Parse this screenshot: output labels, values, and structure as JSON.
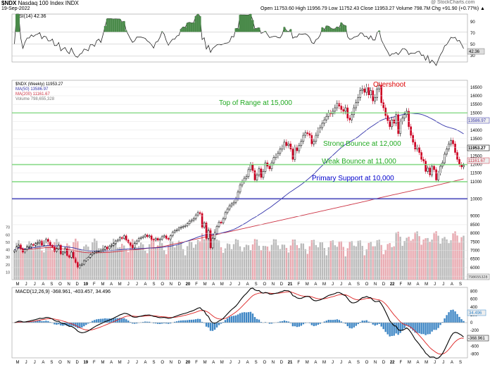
{
  "header": {
    "symbol": "$NDX",
    "name": "Nasdaq 100 Index",
    "exchange": "INDX",
    "date": "19-Sep-2022",
    "watermark": "@ StockCharts.com",
    "ohlc": "Open 11753.60  High 11956.79  Low 11752.43  Close 11953.27  Volume 798.7M  Chg +91.90 (+0.77%) ▲"
  },
  "legend": {
    "price": "$NDX (Weekly) 11953.27",
    "ma50": "MA(50) 13586.97",
    "ma200": "MA(200) 11161.67",
    "volume": "Volume 798,655,328"
  },
  "rsi": {
    "label": "RSI(14) 42.36",
    "ticks": [
      "90",
      "70",
      "50",
      "30"
    ],
    "value_label": "42.36"
  },
  "macd": {
    "label": "MACD(12,26,9) -368.961, -403.457, 34.496",
    "ticks": [
      "800",
      "600",
      "400",
      "200",
      "0",
      "-200",
      "-400",
      "-600",
      "-800"
    ],
    "value_labels": [
      "34.496",
      "-368.961"
    ]
  },
  "annotations": {
    "overshoot": "Overshoot",
    "top": "Top of Range at 15,000",
    "strong": "Strong Bounce at 12,000",
    "weak": "Weak Bounce at 11,000",
    "primary": "Primary Support at 10,000"
  },
  "price_axis": {
    "ticks": [
      "16500",
      "16000",
      "15500",
      "15000",
      "14500",
      "14000",
      "13500",
      "13000",
      "12500",
      "12000",
      "11500",
      "11000",
      "10000",
      "9000",
      "8500",
      "8000",
      "7500",
      "7000",
      "6500",
      "6000",
      "5500"
    ],
    "last_labels": [
      "13586.97",
      "11953.27",
      "11161.67"
    ],
    "volume_ticks": [
      "70",
      "60",
      "50",
      "40",
      "30",
      "20",
      "10"
    ],
    "volume_last": "798655328"
  },
  "x_axis": {
    "labels": [
      "M",
      "J",
      "J",
      "A",
      "S",
      "O",
      "N",
      "D",
      "19",
      "F",
      "M",
      "A",
      "M",
      "J",
      "J",
      "A",
      "S",
      "O",
      "N",
      "D",
      "20",
      "F",
      "M",
      "A",
      "M",
      "J",
      "J",
      "A",
      "S",
      "O",
      "N",
      "D",
      "21",
      "F",
      "M",
      "A",
      "M",
      "J",
      "J",
      "A",
      "S",
      "O",
      "N",
      "D",
      "22",
      "F",
      "M",
      "A",
      "M",
      "J",
      "J",
      "A",
      "S"
    ]
  },
  "colors": {
    "range_lines": "#33cc33",
    "primary_line": "#0000aa",
    "annotation_green": "#22aa22",
    "annotation_blue": "#0000cc",
    "overshoot": "#dd0000",
    "ma50": "#3333aa",
    "ma200": "#cc3344",
    "up": "#000000",
    "down": "#cc0022"
  },
  "chart_data": {
    "type": "candlestick",
    "timeframe": "weekly",
    "closes": [
      7000,
      7200,
      7300,
      7100,
      6900,
      7050,
      7200,
      7200,
      7350,
      7300,
      7400,
      7450,
      7550,
      7300,
      7500,
      7650,
      7500,
      7300,
      7200,
      6950,
      7100,
      7300,
      6800,
      6900,
      7100,
      6700,
      6600,
      6900,
      6550,
      6300,
      6000,
      6150,
      6200,
      6400,
      6500,
      6600,
      6750,
      6850,
      6900,
      6950,
      6950,
      7000,
      7050,
      7200,
      7100,
      7250,
      7300,
      7400,
      7550,
      7600,
      7750,
      7700,
      7850,
      7600,
      7450,
      7300,
      7150,
      7400,
      7550,
      7700,
      7750,
      7800,
      7900,
      7800,
      7850,
      7650,
      7600,
      7700,
      7600,
      7650,
      7800,
      7850,
      7700,
      7650,
      7850,
      8050,
      8150,
      8200,
      8300,
      8350,
      8400,
      8450,
      8550,
      8700,
      8750,
      8850,
      9050,
      9200,
      9150,
      8350,
      8600,
      7700,
      8150,
      7150,
      7700,
      8000,
      8400,
      8650,
      8600,
      8850,
      9200,
      9400,
      9600,
      9700,
      9800,
      10000,
      10400,
      10800,
      11000,
      11200,
      11300,
      11700,
      12000,
      11650,
      11100,
      11400,
      11750,
      11250,
      11600,
      12100,
      11900,
      11750,
      12100,
      12400,
      12500,
      12650,
      12900,
      13000,
      13300,
      13100,
      13200,
      12900,
      12300,
      13000,
      12800,
      13100,
      13350,
      13700,
      13850,
      13800,
      13700,
      13200,
      13350,
      13700,
      14000,
      14150,
      14400,
      14600,
      14800,
      15000,
      14950,
      15100,
      15300,
      15550,
      15400,
      15200,
      15100,
      15300,
      14700,
      14600,
      14900,
      15300,
      15600,
      15900,
      16300,
      16400,
      16200,
      16500,
      16050,
      16300,
      15700,
      15900,
      16400,
      16600,
      15600,
      15300,
      14850,
      14550,
      14200,
      14600,
      14400,
      14900,
      13800,
      14500,
      14700,
      14900,
      15100,
      14200,
      13700,
      13300,
      12900,
      13000,
      12700,
      12300,
      12200,
      11600,
      11800,
      11400,
      11900,
      11700,
      11100,
      11500,
      11900,
      12100,
      12600,
      12900,
      13200,
      13400,
      13200,
      12700,
      12300,
      12000,
      11863,
      11953
    ],
    "ma50_last": 13586.97,
    "ma200_last": 11161.67,
    "last_close": 11953.27,
    "volume_last": 798655328,
    "rsi_last": 42.36,
    "macd": {
      "macd": -368.961,
      "signal": -403.457,
      "histogram": 34.496
    },
    "horizontal_lines": [
      {
        "label": "Top of Range at 15,000",
        "value": 15000
      },
      {
        "label": "Strong Bounce at 12,000",
        "value": 12000
      },
      {
        "label": "Weak Bounce at 11,000",
        "value": 11000
      },
      {
        "label": "Primary Support at 10,000",
        "value": 10000
      }
    ],
    "ylim": [
      5300,
      16900
    ]
  }
}
